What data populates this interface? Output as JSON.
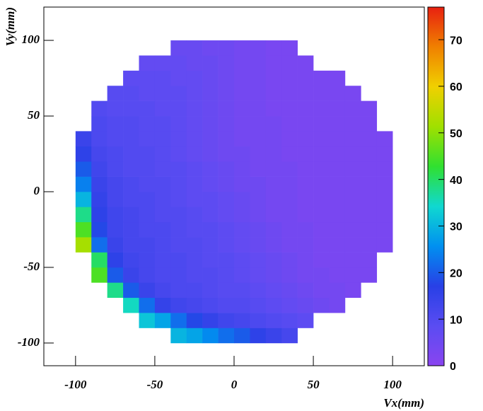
{
  "chart_data": {
    "type": "heatmap",
    "x_label": "Vx(mm)",
    "y_label": "Vy(mm)",
    "xlim": [
      -120,
      120
    ],
    "xticks": [
      -100,
      -50,
      0,
      50,
      100
    ],
    "ylim": [
      -115,
      122
    ],
    "yticks": [
      -100,
      -50,
      0,
      50,
      100
    ],
    "zlim": [
      0,
      77
    ],
    "zticks": [
      0,
      10,
      20,
      30,
      40,
      50,
      60,
      70
    ],
    "palette": [
      "#8a44f0",
      "#5a4cf2",
      "#2840e6",
      "#0090f0",
      "#10d8d0",
      "#30e030",
      "#a0e000",
      "#f0d000",
      "#f08000",
      "#e82010"
    ],
    "x_bins": [
      -110,
      -100,
      -90,
      -80,
      -70,
      -60,
      -50,
      -40,
      -30,
      -20,
      -10,
      0,
      10,
      20,
      30,
      40,
      50,
      60,
      70,
      80,
      90,
      100,
      110
    ],
    "y_bins": [
      -110,
      -100,
      -90,
      -80,
      -70,
      -60,
      -50,
      -40,
      -30,
      -20,
      -10,
      0,
      10,
      20,
      30,
      40,
      50,
      60,
      70,
      80,
      90,
      100,
      110
    ],
    "z": [
      [
        null,
        null,
        null,
        null,
        null,
        null,
        null,
        null,
        null,
        null,
        null,
        null,
        null,
        null,
        null,
        null,
        null,
        null,
        null,
        null,
        null,
        null
      ],
      [
        null,
        null,
        null,
        null,
        null,
        null,
        null,
        30,
        28,
        25,
        22,
        20,
        16,
        14,
        12,
        null,
        null,
        null,
        null,
        null,
        null,
        null
      ],
      [
        null,
        null,
        null,
        null,
        null,
        32,
        28,
        22,
        18,
        15,
        13,
        12,
        11,
        10,
        9,
        8,
        null,
        null,
        null,
        null,
        null,
        null
      ],
      [
        null,
        null,
        null,
        null,
        35,
        22,
        15,
        13,
        12,
        11,
        10,
        10,
        9,
        8,
        7,
        6,
        5,
        4,
        null,
        null,
        null,
        null
      ],
      [
        null,
        null,
        null,
        38,
        20,
        14,
        12,
        11,
        11,
        10,
        9,
        9,
        8,
        7,
        6,
        5,
        4,
        4,
        3,
        null,
        null,
        null
      ],
      [
        null,
        null,
        45,
        20,
        14,
        12,
        11,
        11,
        10,
        10,
        9,
        8,
        7,
        6,
        5,
        4,
        4,
        3,
        3,
        3,
        null,
        null
      ],
      [
        null,
        null,
        40,
        16,
        13,
        12,
        11,
        11,
        10,
        9,
        9,
        8,
        7,
        6,
        5,
        4,
        3,
        3,
        3,
        3,
        null,
        null
      ],
      [
        null,
        52,
        22,
        14,
        12,
        12,
        11,
        10,
        10,
        9,
        8,
        7,
        6,
        5,
        4,
        4,
        3,
        3,
        3,
        3,
        3,
        null
      ],
      [
        null,
        45,
        18,
        13,
        12,
        11,
        11,
        10,
        9,
        9,
        8,
        7,
        6,
        5,
        4,
        4,
        3,
        3,
        3,
        3,
        3,
        null
      ],
      [
        null,
        38,
        16,
        13,
        12,
        11,
        10,
        10,
        9,
        8,
        7,
        6,
        5,
        4,
        4,
        3,
        3,
        3,
        3,
        3,
        3,
        null
      ],
      [
        null,
        30,
        15,
        12,
        11,
        11,
        10,
        9,
        8,
        8,
        7,
        6,
        5,
        4,
        4,
        3,
        3,
        3,
        3,
        3,
        3,
        null
      ],
      [
        null,
        24,
        14,
        12,
        11,
        10,
        10,
        9,
        8,
        7,
        6,
        5,
        5,
        4,
        4,
        3,
        3,
        3,
        3,
        3,
        3,
        null
      ],
      [
        null,
        20,
        13,
        11,
        10,
        10,
        9,
        9,
        8,
        7,
        6,
        5,
        4,
        4,
        4,
        3,
        3,
        3,
        3,
        3,
        3,
        null
      ],
      [
        null,
        16,
        12,
        11,
        10,
        10,
        9,
        8,
        7,
        6,
        5,
        5,
        4,
        4,
        3,
        3,
        3,
        3,
        3,
        3,
        3,
        null
      ],
      [
        null,
        14,
        11,
        10,
        10,
        9,
        9,
        8,
        7,
        6,
        5,
        4,
        4,
        4,
        3,
        3,
        3,
        3,
        3,
        3,
        3,
        null
      ],
      [
        null,
        null,
        11,
        10,
        10,
        9,
        9,
        8,
        7,
        6,
        5,
        4,
        4,
        4,
        3,
        3,
        3,
        3,
        3,
        3,
        null,
        null
      ],
      [
        null,
        null,
        10,
        9,
        9,
        9,
        8,
        8,
        7,
        6,
        5,
        4,
        4,
        3,
        3,
        3,
        3,
        3,
        3,
        3,
        null,
        null
      ],
      [
        null,
        null,
        null,
        9,
        9,
        8,
        8,
        8,
        7,
        6,
        5,
        4,
        4,
        3,
        3,
        3,
        3,
        3,
        3,
        null,
        null,
        null
      ],
      [
        null,
        null,
        null,
        null,
        8,
        8,
        8,
        7,
        7,
        6,
        5,
        4,
        4,
        3,
        3,
        3,
        3,
        3,
        null,
        null,
        null,
        null
      ],
      [
        null,
        null,
        null,
        null,
        null,
        7,
        7,
        7,
        6,
        6,
        5,
        4,
        4,
        3,
        3,
        3,
        null,
        null,
        null,
        null,
        null,
        null
      ],
      [
        null,
        null,
        null,
        null,
        null,
        null,
        null,
        6,
        6,
        5,
        5,
        4,
        4,
        3,
        3,
        null,
        null,
        null,
        null,
        null,
        null,
        null
      ],
      [
        null,
        null,
        null,
        null,
        null,
        null,
        null,
        null,
        null,
        null,
        null,
        null,
        null,
        null,
        null,
        null,
        null,
        null,
        null,
        null,
        null,
        null
      ]
    ]
  }
}
